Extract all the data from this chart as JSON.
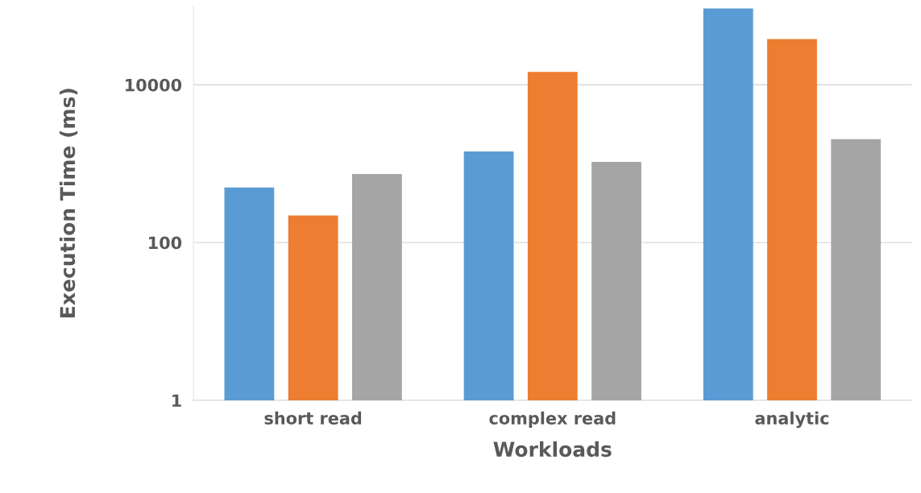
{
  "chart_data": {
    "type": "bar",
    "xlabel": "Workloads",
    "ylabel": "Execution Time (ms)",
    "categories": [
      "short read",
      "complex read",
      "analytic"
    ],
    "series": [
      {
        "color": "#5b9bd5",
        "values": [
          500,
          1430,
          93000
        ]
      },
      {
        "color": "#ed7d31",
        "values": [
          220,
          14600,
          38000
        ]
      },
      {
        "color": "#a5a5a5",
        "values": [
          740,
          1050,
          2040
        ]
      }
    ],
    "log": true,
    "ylim": [
      1,
      100000
    ],
    "yticks": [
      1,
      100,
      10000
    ],
    "grid": "y"
  }
}
